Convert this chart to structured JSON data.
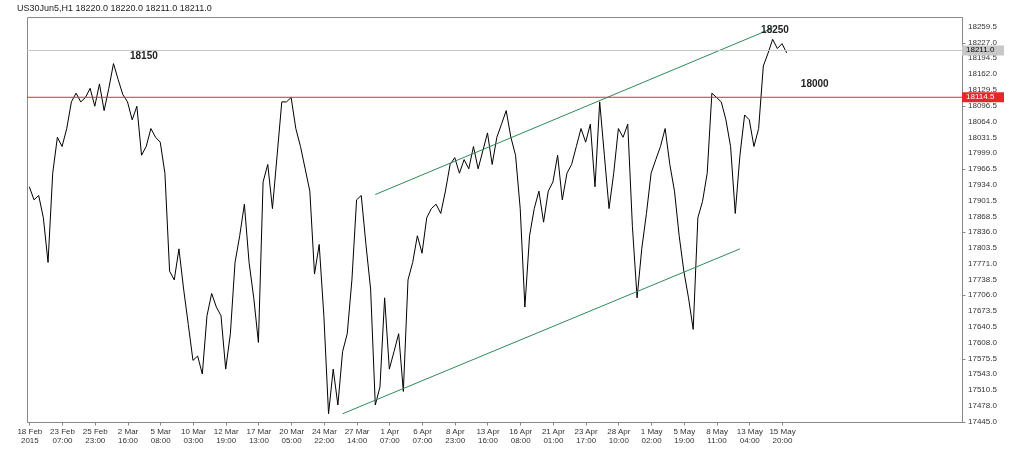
{
  "chart_data": {
    "type": "line",
    "title": "US30Jun5,H1 18220.0 18220.0 18211.0 18211.0",
    "categories": [
      "18 Feb 2015",
      null,
      null,
      null,
      null,
      null,
      null,
      "23 Feb 07:00",
      null,
      null,
      null,
      null,
      null,
      null,
      "25 Feb 23:00",
      null,
      null,
      null,
      null,
      null,
      null,
      "2 Mar 16:00",
      null,
      null,
      null,
      null,
      null,
      null,
      "5 Mar 08:00",
      null,
      null,
      null,
      null,
      null,
      null,
      "10 Mar 03:00",
      null,
      null,
      null,
      null,
      null,
      null,
      "12 Mar 19:00",
      null,
      null,
      null,
      null,
      null,
      null,
      "17 Mar 13:00",
      null,
      null,
      null,
      null,
      null,
      null,
      "20 Mar 05:00",
      null,
      null,
      null,
      null,
      null,
      null,
      "24 Mar 22:00",
      null,
      null,
      null,
      null,
      null,
      null,
      "27 Mar 14:00",
      null,
      null,
      null,
      null,
      null,
      null,
      "1 Apr 07:00",
      null,
      null,
      null,
      null,
      null,
      null,
      "6 Apr 07:00",
      null,
      null,
      null,
      null,
      null,
      null,
      "8 Apr 23:00",
      null,
      null,
      null,
      null,
      null,
      null,
      "13 Apr 16:00",
      null,
      null,
      null,
      null,
      null,
      null,
      "16 Apr 08:00",
      null,
      null,
      null,
      null,
      null,
      null,
      "21 Apr 01:00",
      null,
      null,
      null,
      null,
      null,
      null,
      "23 Apr 17:00",
      null,
      null,
      null,
      null,
      null,
      null,
      "28 Apr 10:00",
      null,
      null,
      null,
      null,
      null,
      null,
      "1 May 02:00",
      null,
      null,
      null,
      null,
      null,
      null,
      "5 May 19:00",
      null,
      null,
      null,
      null,
      null,
      null,
      "8 May 11:00",
      null,
      null,
      null,
      null,
      null,
      null,
      "13 May 04:00",
      null,
      null,
      null,
      null,
      null,
      null,
      "15 May 20:00",
      null,
      null,
      null,
      null,
      null,
      null,
      null,
      null,
      null,
      null,
      null,
      null,
      null,
      null,
      null,
      null,
      null,
      null,
      null,
      null,
      null,
      null,
      null,
      null,
      null,
      null,
      null,
      null,
      null,
      null,
      null,
      null,
      null,
      null,
      null,
      null,
      null,
      null
    ],
    "ylim": [
      17445,
      18280
    ],
    "yticks": [
      {
        "value": 17445,
        "label": "17445.0"
      },
      {
        "value": 17478,
        "label": "17478.0"
      },
      {
        "value": 17510.5,
        "label": "17510.5"
      },
      {
        "value": 17543,
        "label": "17543.0"
      },
      {
        "value": 17575.5,
        "label": "17575.5"
      },
      {
        "value": 17608,
        "label": "17608.0"
      },
      {
        "value": 17640.5,
        "label": "17640.5"
      },
      {
        "value": 17673.5,
        "label": "17673.5"
      },
      {
        "value": 17706,
        "label": "17706.0"
      },
      {
        "value": 17738.5,
        "label": "17738.5"
      },
      {
        "value": 17771,
        "label": "17771.0"
      },
      {
        "value": 17803.5,
        "label": "17803.5"
      },
      {
        "value": 17836,
        "label": "17836.0"
      },
      {
        "value": 17868.5,
        "label": "17868.5"
      },
      {
        "value": 17901.5,
        "label": "17901.5"
      },
      {
        "value": 17934,
        "label": "17934.0"
      },
      {
        "value": 17966.5,
        "label": "17966.5"
      },
      {
        "value": 17999,
        "label": "17999.0"
      },
      {
        "value": 18031.5,
        "label": "18031.5"
      },
      {
        "value": 18064,
        "label": "18064.0"
      },
      {
        "value": 18096.5,
        "label": "18096.5"
      },
      {
        "value": 18129.5,
        "label": "18129.5"
      },
      {
        "value": 18162,
        "label": "18162.0"
      },
      {
        "value": 18194.5,
        "label": "18194.5"
      },
      {
        "value": 18227,
        "label": "18227.0"
      },
      {
        "value": 18259.5,
        "label": "18259.5"
      }
    ],
    "grid": false,
    "marker": "none",
    "line_style": "solid",
    "ref_lines": [
      {
        "axis": "y",
        "value": 18114.5,
        "label": "18114.5",
        "color": "#e8262a"
      },
      {
        "axis": "y",
        "value": 18211,
        "label": "18211.0",
        "color": "#c8c8c8"
      }
    ],
    "annotations": [
      "18150",
      "18250",
      {
        "text": "18000",
        "y": 18114.5
      }
    ],
    "series": [
      {
        "color": "#000000",
        "values": [
          17930,
          17903,
          17912,
          17866,
          17774,
          17958,
          18032,
          18013,
          18050,
          18105,
          18123,
          18105,
          18114,
          18133,
          18096,
          18142,
          18087,
          18133,
          18184,
          18151,
          18120,
          18105,
          18068,
          18096,
          17995,
          18013,
          18050,
          18032,
          18022,
          17958,
          17756,
          17738,
          17802,
          17719,
          17646,
          17572,
          17581,
          17544,
          17664,
          17710,
          17682,
          17664,
          17554,
          17627,
          17774,
          17829,
          17894,
          17774,
          17701,
          17609,
          17940,
          17976,
          17885,
          17995,
          18105,
          18105,
          18114,
          18050,
          18013,
          17967,
          17921,
          17750,
          17811,
          17664,
          17462,
          17554,
          17480,
          17590,
          17627,
          17738,
          17903,
          17912,
          17811,
          17719,
          17480,
          17517,
          17701,
          17554,
          17590,
          17627,
          17508,
          17738,
          17774,
          17829,
          17793,
          17866,
          17885,
          17894,
          17875,
          17921,
          17976,
          17990,
          17958,
          17986,
          17967,
          18013,
          17967,
          18004,
          18041,
          17976,
          18032,
          18059,
          18087,
          18032,
          17995,
          17885,
          17682,
          17829,
          17885,
          17921,
          17857,
          17921,
          17940,
          17995,
          17903,
          17958,
          17976,
          18013,
          18050,
          18022,
          18059,
          17930,
          18105,
          17995,
          17885,
          17958,
          18050,
          18032,
          18059,
          17848,
          17701,
          17802,
          17875,
          17958,
          17986,
          18013,
          18050,
          17976,
          17921,
          17829,
          17756,
          17701,
          17636,
          17866,
          17900,
          17958,
          18123,
          18114,
          18105,
          18068,
          18013,
          17875,
          17995,
          18078,
          18068,
          18013,
          18050,
          18179,
          18205,
          18234,
          18215,
          18225,
          18206,
          null,
          null,
          null,
          null,
          null,
          null,
          null,
          null,
          null,
          null,
          null,
          null,
          null,
          null,
          null,
          null,
          null,
          null,
          null,
          null,
          null,
          null,
          null,
          null,
          null,
          null,
          null,
          null,
          null,
          null,
          null,
          null,
          null,
          null,
          null,
          null,
          null
        ]
      },
      {
        "color": "#2e8b57",
        "values": [
          null,
          null,
          null,
          null,
          null,
          null,
          null,
          null,
          null,
          null,
          null,
          null,
          null,
          null,
          null,
          null,
          null,
          null,
          null,
          null,
          null,
          null,
          null,
          null,
          null,
          null,
          null,
          null,
          null,
          null,
          null,
          null,
          null,
          null,
          null,
          null,
          null,
          null,
          null,
          null,
          null,
          null,
          null,
          null,
          null,
          null,
          null,
          null,
          null,
          null,
          null,
          null,
          null,
          null,
          null,
          null,
          null,
          null,
          null,
          null,
          null,
          null,
          null,
          null,
          null,
          null,
          null,
          null,
          null,
          null,
          null,
          null,
          null,
          null,
          17914,
          null,
          null,
          null,
          null,
          null,
          null,
          null,
          null,
          null,
          null,
          null,
          null,
          null,
          null,
          null,
          null,
          null,
          null,
          null,
          null,
          null,
          null,
          null,
          null,
          null,
          null,
          null,
          null,
          null,
          null,
          null,
          null,
          null,
          null,
          null,
          null,
          null,
          null,
          null,
          null,
          null,
          null,
          null,
          null,
          null,
          null,
          null,
          null,
          null,
          null,
          null,
          null,
          null,
          null,
          null,
          null,
          null,
          null,
          null,
          null,
          null,
          null,
          null,
          null,
          null,
          null,
          null,
          null,
          null,
          null,
          null,
          null,
          null,
          null,
          null,
          null,
          null,
          null,
          null,
          null,
          null,
          null,
          null,
          null,
          18257,
          null,
          null,
          null,
          null,
          null,
          null,
          null,
          null,
          null,
          null,
          null,
          null,
          null,
          null,
          null,
          null,
          null,
          null,
          null,
          null,
          null,
          null,
          null,
          null,
          null,
          null,
          null,
          null,
          null,
          null,
          null,
          null,
          null,
          null,
          null,
          null,
          null,
          null,
          null,
          null
        ]
      },
      {
        "color": "#2e8b57",
        "values": [
          null,
          null,
          null,
          null,
          null,
          null,
          null,
          null,
          null,
          null,
          null,
          null,
          null,
          null,
          null,
          null,
          null,
          null,
          null,
          null,
          null,
          null,
          null,
          null,
          null,
          null,
          null,
          null,
          null,
          null,
          null,
          null,
          null,
          null,
          null,
          null,
          null,
          null,
          null,
          null,
          null,
          null,
          null,
          null,
          null,
          null,
          null,
          null,
          null,
          null,
          null,
          null,
          null,
          null,
          null,
          null,
          null,
          null,
          null,
          null,
          null,
          null,
          null,
          null,
          null,
          null,
          null,
          17462,
          null,
          null,
          null,
          null,
          null,
          null,
          null,
          null,
          null,
          null,
          null,
          null,
          null,
          null,
          null,
          null,
          null,
          null,
          null,
          null,
          null,
          null,
          null,
          null,
          null,
          null,
          null,
          null,
          null,
          null,
          null,
          null,
          null,
          null,
          null,
          null,
          null,
          null,
          null,
          null,
          null,
          null,
          null,
          null,
          null,
          null,
          null,
          null,
          null,
          null,
          null,
          null,
          null,
          null,
          null,
          null,
          null,
          null,
          null,
          null,
          null,
          null,
          null,
          null,
          null,
          null,
          null,
          null,
          null,
          null,
          null,
          null,
          null,
          null,
          null,
          null,
          null,
          null,
          null,
          null,
          null,
          null,
          null,
          null,
          17802,
          null,
          null,
          null,
          null,
          null,
          null,
          null,
          null,
          null,
          null,
          null,
          null,
          null,
          null,
          null,
          null,
          null,
          null,
          null,
          null,
          null,
          null,
          null,
          null,
          null,
          null,
          null,
          null,
          null,
          null,
          null,
          null,
          null,
          null,
          null,
          null,
          null,
          null,
          null,
          null,
          null,
          null,
          null,
          null,
          null,
          null,
          null
        ]
      }
    ]
  }
}
